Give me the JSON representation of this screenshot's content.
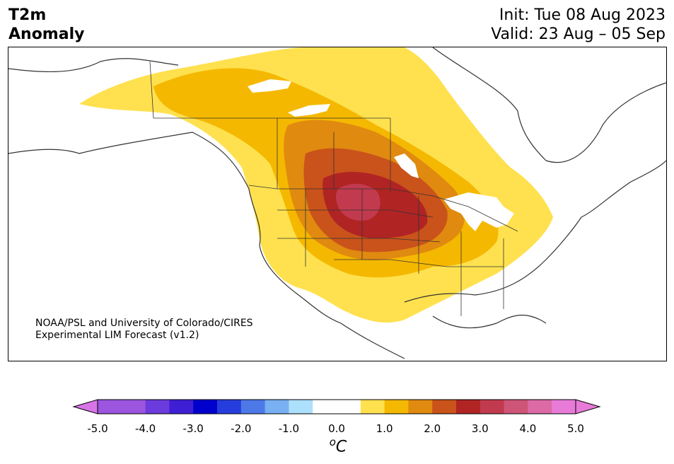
{
  "title": {
    "line1": "T2m",
    "line2": "Anomaly",
    "init": "Init: Tue 08 Aug 2023",
    "valid": "Valid: 23 Aug – 05 Sep"
  },
  "credit": {
    "line1": "NOAA/PSL and University of Colorado/CIRES",
    "line2": "Experimental LIM Forecast (v1.2)"
  },
  "colorbar": {
    "unit_base": "o",
    "unit_main": "C",
    "ticks": [
      "-5.0",
      "-4.0",
      "-3.0",
      "-2.0",
      "-1.0",
      "0.0",
      "1.0",
      "2.0",
      "3.0",
      "4.0",
      "5.0"
    ],
    "bins": [
      {
        "from": -5.0,
        "to": -4.5,
        "color": "#9b55df"
      },
      {
        "from": -4.5,
        "to": -4.0,
        "color": "#9b55df"
      },
      {
        "from": -4.0,
        "to": -3.5,
        "color": "#6c3bdd"
      },
      {
        "from": -3.5,
        "to": -3.0,
        "color": "#3e1fd4"
      },
      {
        "from": -3.0,
        "to": -2.5,
        "color": "#0000cd"
      },
      {
        "from": -2.5,
        "to": -2.0,
        "color": "#263ddd"
      },
      {
        "from": -2.0,
        "to": -1.5,
        "color": "#4d78e8"
      },
      {
        "from": -1.5,
        "to": -1.0,
        "color": "#78b0f2"
      },
      {
        "from": -1.0,
        "to": -0.5,
        "color": "#ade0fb"
      },
      {
        "from": -0.5,
        "to": 0.5,
        "color": "#ffffff"
      },
      {
        "from": 0.5,
        "to": 1.0,
        "color": "#ffe14f"
      },
      {
        "from": 1.0,
        "to": 1.5,
        "color": "#f5b800"
      },
      {
        "from": 1.5,
        "to": 2.0,
        "color": "#e08a10"
      },
      {
        "from": 2.0,
        "to": 2.5,
        "color": "#c9531a"
      },
      {
        "from": 2.5,
        "to": 3.0,
        "color": "#b02424"
      },
      {
        "from": 3.0,
        "to": 3.5,
        "color": "#c23a4e"
      },
      {
        "from": 3.5,
        "to": 4.0,
        "color": "#cf5577"
      },
      {
        "from": 4.0,
        "to": 4.5,
        "color": "#dc6aa5"
      },
      {
        "from": 4.5,
        "to": 5.0,
        "color": "#e87bd8"
      }
    ],
    "under_color": "#d974e8",
    "over_color": "#e87bd8"
  }
}
